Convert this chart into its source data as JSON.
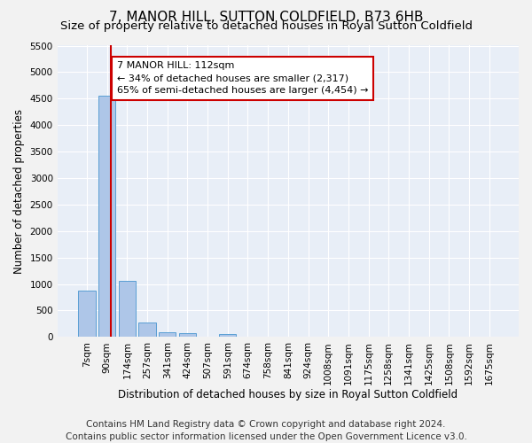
{
  "title": "7, MANOR HILL, SUTTON COLDFIELD, B73 6HB",
  "subtitle": "Size of property relative to detached houses in Royal Sutton Coldfield",
  "xlabel": "Distribution of detached houses by size in Royal Sutton Coldfield",
  "ylabel": "Number of detached properties",
  "footer_line1": "Contains HM Land Registry data © Crown copyright and database right 2024.",
  "footer_line2": "Contains public sector information licensed under the Open Government Licence v3.0.",
  "bar_labels": [
    "7sqm",
    "90sqm",
    "174sqm",
    "257sqm",
    "341sqm",
    "424sqm",
    "507sqm",
    "591sqm",
    "674sqm",
    "758sqm",
    "841sqm",
    "924sqm",
    "1008sqm",
    "1091sqm",
    "1175sqm",
    "1258sqm",
    "1341sqm",
    "1425sqm",
    "1508sqm",
    "1592sqm",
    "1675sqm"
  ],
  "bar_values": [
    880,
    4550,
    1060,
    275,
    90,
    80,
    0,
    55,
    0,
    0,
    0,
    0,
    0,
    0,
    0,
    0,
    0,
    0,
    0,
    0,
    0
  ],
  "bar_color": "#aec6e8",
  "bar_edge_color": "#5a9fd4",
  "vline_x": 1.18,
  "ylim": [
    0,
    5500
  ],
  "yticks": [
    0,
    500,
    1000,
    1500,
    2000,
    2500,
    3000,
    3500,
    4000,
    4500,
    5000,
    5500
  ],
  "annotation_title": "7 MANOR HILL: 112sqm",
  "annotation_line1": "← 34% of detached houses are smaller (2,317)",
  "annotation_line2": "65% of semi-detached houses are larger (4,454) →",
  "annotation_box_color": "#ffffff",
  "annotation_box_edge_color": "#cc0000",
  "vline_color": "#cc0000",
  "bg_color": "#e8eef7",
  "fig_bg_color": "#f2f2f2",
  "grid_color": "#ffffff",
  "title_fontsize": 11,
  "subtitle_fontsize": 9.5,
  "axis_label_fontsize": 8.5,
  "tick_fontsize": 7.5,
  "annotation_fontsize": 8,
  "footer_fontsize": 7.5
}
